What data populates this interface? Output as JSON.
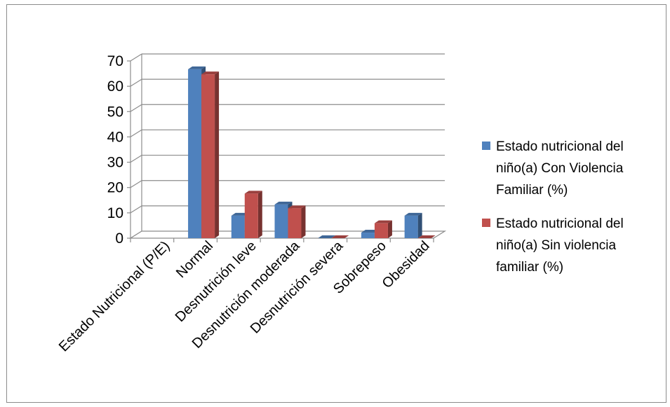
{
  "chart_data": {
    "type": "bar",
    "title": "",
    "xlabel": "",
    "ylabel": "",
    "ylim": [
      0,
      70
    ],
    "yticks": [
      0,
      10,
      20,
      30,
      40,
      50,
      60,
      70
    ],
    "grid": true,
    "legend_position": "right",
    "categories": [
      "Estado Nutricional (P/E)",
      "Normal",
      "Desnutrición leve",
      "Desnutrición moderada",
      "Desnutrición severa",
      "Sobrepeso",
      "Obesidad"
    ],
    "series": [
      {
        "name_lines": [
          "Estado nutricional del",
          "niño(a) Con Violencia",
          "Familiar (%)"
        ],
        "color": "#4F81BD",
        "values": [
          null,
          66.7,
          8.9,
          13.3,
          0,
          2.2,
          8.9
        ]
      },
      {
        "name_lines": [
          "Estado nutricional del",
          "niño(a) Sin violencia",
          "familiar (%)"
        ],
        "color": "#C0504D",
        "values": [
          null,
          64.7,
          17.6,
          11.8,
          0,
          5.9,
          0
        ]
      }
    ]
  }
}
